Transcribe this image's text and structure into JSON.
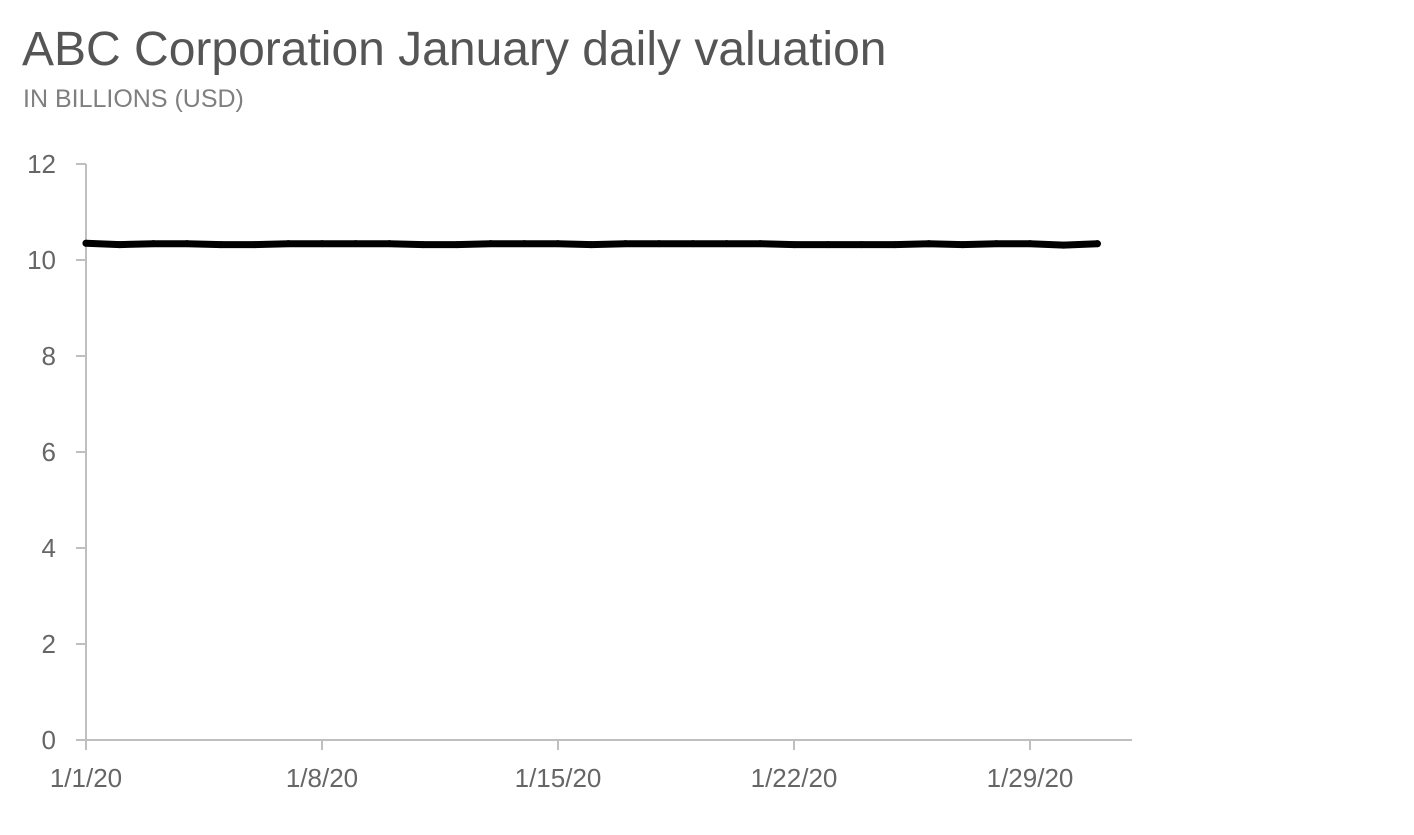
{
  "chart_data": {
    "type": "line",
    "title": "ABC Corporation January daily valuation",
    "subtitle": "IN BILLIONS (USD)",
    "xlabel": "",
    "ylabel": "",
    "x_type": "date",
    "x": [
      "2020-01-01",
      "2020-01-02",
      "2020-01-03",
      "2020-01-04",
      "2020-01-05",
      "2020-01-06",
      "2020-01-07",
      "2020-01-08",
      "2020-01-09",
      "2020-01-10",
      "2020-01-11",
      "2020-01-12",
      "2020-01-13",
      "2020-01-14",
      "2020-01-15",
      "2020-01-16",
      "2020-01-17",
      "2020-01-18",
      "2020-01-19",
      "2020-01-20",
      "2020-01-21",
      "2020-01-22",
      "2020-01-23",
      "2020-01-24",
      "2020-01-25",
      "2020-01-26",
      "2020-01-27",
      "2020-01-28",
      "2020-01-29",
      "2020-01-30",
      "2020-01-31"
    ],
    "series": [
      {
        "color": "#000000",
        "values": [
          10.35,
          10.32,
          10.34,
          10.34,
          10.32,
          10.32,
          10.34,
          10.34,
          10.34,
          10.34,
          10.32,
          10.32,
          10.34,
          10.34,
          10.34,
          10.32,
          10.34,
          10.34,
          10.34,
          10.34,
          10.34,
          10.32,
          10.32,
          10.32,
          10.32,
          10.34,
          10.32,
          10.34,
          10.34,
          10.31,
          10.34
        ]
      }
    ],
    "ylim": [
      0,
      12
    ],
    "yticks": [
      0,
      2,
      4,
      6,
      8,
      10,
      12
    ],
    "xlim": [
      "2020-01-01",
      "2020-01-31"
    ],
    "xticks": [
      "2020-01-01",
      "2020-01-08",
      "2020-01-15",
      "2020-01-22",
      "2020-01-29"
    ],
    "xtick_labels": [
      "1/1/20",
      "1/8/20",
      "1/15/20",
      "1/22/20",
      "1/29/20"
    ],
    "ytick_labels": [
      "0",
      "2",
      "4",
      "6",
      "8",
      "10",
      "12"
    ],
    "grid": false,
    "legend": "none",
    "axis_color": "#bfbfbf",
    "tick_label_color": "#666666"
  }
}
